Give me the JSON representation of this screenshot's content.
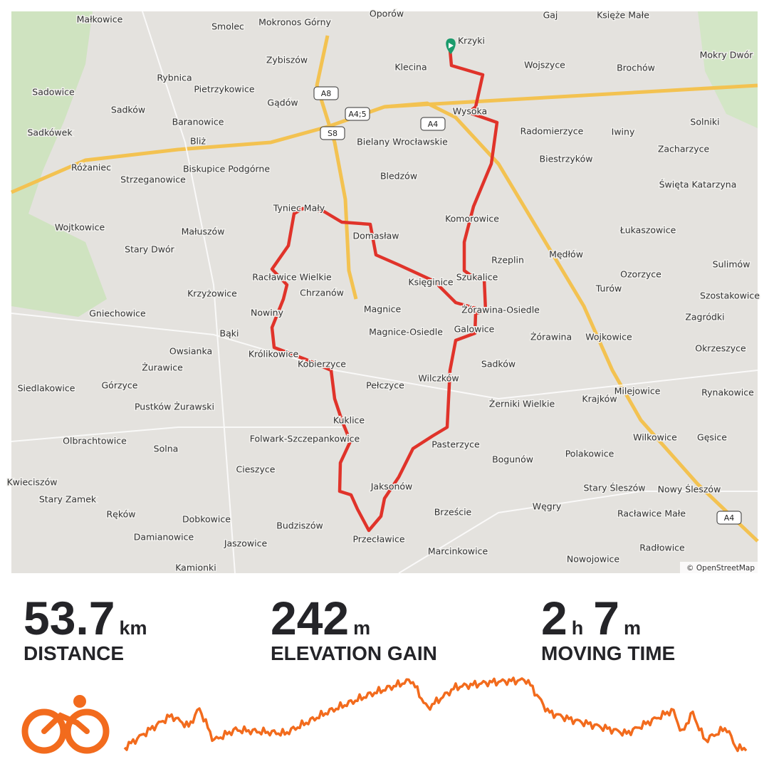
{
  "map": {
    "attribution": "© OpenStreetMap",
    "roads": [
      "A8",
      "A4;5",
      "S8",
      "A4",
      "A4"
    ],
    "places": [
      "Oporów",
      "Gaj",
      "Księże Małe",
      "Małkowice",
      "Smolec",
      "Mokronos Górny",
      "Krzyki",
      "Mokry Dwór",
      "Zybiszów",
      "Klecina",
      "Wojszyce",
      "Brochów",
      "Rybnica",
      "Pietrzykowice",
      "Sadowice",
      "Sadków",
      "Gądów",
      "Baranowice",
      "Radomierzyce",
      "Iwiny",
      "Solniki",
      "Sadkówek",
      "Bliż",
      "Bielany Wrocławskie",
      "Biestrzyków",
      "Zacharzyce",
      "Różaniec",
      "Biskupice Podgórne",
      "Strzeganowice",
      "Bledzów",
      "Święta Katarzyna",
      "Wojtkowice",
      "Małuszów",
      "Domasław",
      "Komorowice",
      "Łukaszowice",
      "Stary Dwór",
      "Mędłów",
      "Rzeplin",
      "Sulimów",
      "Racławice Wielkie",
      "Księginice",
      "Szukalice",
      "Ozorzyce",
      "Turów",
      "Krzyżowice",
      "Chrzanów",
      "Szostakowice",
      "Gniechowice",
      "Nowiny",
      "Magnice",
      "Żórawina-Osiedle",
      "Zagródki",
      "Bąki",
      "Magnice-Osiedle",
      "Galowice",
      "Żórawina",
      "Wojkowice",
      "Owsianka",
      "Królikowice",
      "Kobierzyce",
      "Okrzeszyce",
      "Sadków",
      "Żurawice",
      "Siedlakowice",
      "Górzyce",
      "Pełczyce",
      "Wilczków",
      "Milejowice",
      "Rynakowice",
      "Krajków",
      "Pustków Żurawski",
      "Żerniki Wielkie",
      "Kuklice",
      "Gęsice",
      "Wilkowice",
      "Olbrachtowice",
      "Folwark-Szczepankowice",
      "Pasterzyce",
      "Solna",
      "Polakowice",
      "Bogunów",
      "Cieszyce",
      "Kwieciszów",
      "Stary Zamek",
      "Jaksonów",
      "Stary Śleszów",
      "Nowy Śleszów",
      "Ręków",
      "Dobkowice",
      "Brzeście",
      "Węgry",
      "Racławice Małe",
      "Damianowice",
      "Budziszów",
      "Jaszowice",
      "Przecławice",
      "Radłowice",
      "Marcinkowice",
      "Kamionki",
      "Nowojowice",
      "Tyniec Mały",
      "Wysoka"
    ]
  },
  "stats": [
    {
      "parts": [
        {
          "value": 53.7,
          "unit": "km"
        }
      ],
      "label": "DISTANCE"
    },
    {
      "parts": [
        {
          "value": 242,
          "unit": "m"
        }
      ],
      "label": "ELEVATION GAIN"
    },
    {
      "parts": [
        {
          "value": 2,
          "unit": "h"
        },
        {
          "value": 7,
          "unit": "m"
        }
      ],
      "label": "MOVING TIME"
    }
  ]
}
